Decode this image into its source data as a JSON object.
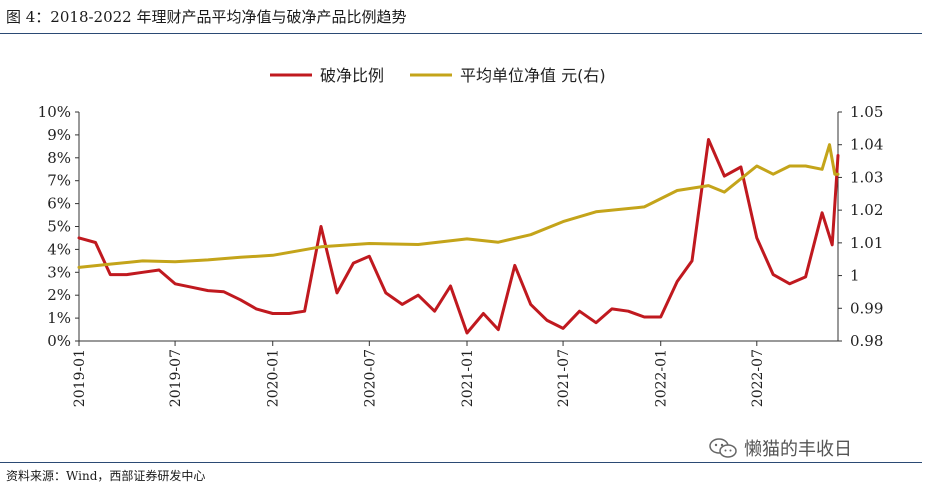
{
  "header": {
    "title": "图 4：2018-2022 年理财产品平均净值与破净产品比例趋势"
  },
  "footer": {
    "source": "资料来源：Wind，西部证券研发中心"
  },
  "watermark": {
    "text": "懒猫的丰收日",
    "icon": "wechat-icon"
  },
  "colors": {
    "series1": "#c0191f",
    "series2": "#c4a41a",
    "rule": "#2b4a74"
  },
  "chart_data": {
    "type": "line",
    "legend_position": "top-center",
    "grid": false,
    "x_range": [
      "2019-01",
      "2022-12"
    ],
    "x_ticks": [
      "2019-01",
      "2019-07",
      "2020-01",
      "2020-07",
      "2021-01",
      "2021-07",
      "2022-01",
      "2022-07"
    ],
    "y_left": {
      "ticks": [
        "0%",
        "1%",
        "2%",
        "3%",
        "4%",
        "5%",
        "6%",
        "7%",
        "8%",
        "9%",
        "10%"
      ],
      "range": [
        0,
        10
      ]
    },
    "y_right": {
      "ticks": [
        "0.98",
        "0.99",
        "1",
        "1.01",
        "1.02",
        "1.03",
        "1.04",
        "1.05"
      ],
      "range": [
        0.98,
        1.05
      ]
    },
    "series": [
      {
        "name": "破净比例",
        "axis": "left",
        "points": [
          [
            "2019-01",
            4.5
          ],
          [
            "2019-02",
            4.3
          ],
          [
            "2019-03",
            2.9
          ],
          [
            "2019-04",
            2.9
          ],
          [
            "2019-05",
            3.0
          ],
          [
            "2019-06",
            3.1
          ],
          [
            "2019-07",
            2.5
          ],
          [
            "2019-08",
            2.35
          ],
          [
            "2019-09",
            2.2
          ],
          [
            "2019-10",
            2.15
          ],
          [
            "2019-11",
            1.8
          ],
          [
            "2019-12",
            1.4
          ],
          [
            "2020-01",
            1.2
          ],
          [
            "2020-02",
            1.2
          ],
          [
            "2020-03",
            1.3
          ],
          [
            "2020-04",
            5.0
          ],
          [
            "2020-05",
            2.1
          ],
          [
            "2020-06",
            3.4
          ],
          [
            "2020-07",
            3.7
          ],
          [
            "2020-08",
            2.1
          ],
          [
            "2020-09",
            1.6
          ],
          [
            "2020-10",
            2.0
          ],
          [
            "2020-11",
            1.3
          ],
          [
            "2020-12",
            2.4
          ],
          [
            "2021-01",
            0.35
          ],
          [
            "2021-02",
            1.2
          ],
          [
            "2021-03",
            0.5
          ],
          [
            "2021-04",
            3.3
          ],
          [
            "2021-05",
            1.6
          ],
          [
            "2021-06",
            0.9
          ],
          [
            "2021-07",
            0.55
          ],
          [
            "2021-08",
            1.3
          ],
          [
            "2021-09",
            0.8
          ],
          [
            "2021-10",
            1.4
          ],
          [
            "2021-11",
            1.3
          ],
          [
            "2021-12",
            1.05
          ],
          [
            "2022-01",
            1.05
          ],
          [
            "2022-02",
            2.6
          ],
          [
            "2022-03",
            3.5
          ],
          [
            "2022-04",
            8.8
          ],
          [
            "2022-05",
            7.2
          ],
          [
            "2022-06",
            7.6
          ],
          [
            "2022-07",
            4.5
          ],
          [
            "2022-08",
            2.9
          ],
          [
            "2022-09",
            2.5
          ],
          [
            "2022-10",
            2.8
          ],
          [
            "2022-11",
            5.6
          ],
          [
            "2022-11-20",
            4.2
          ],
          [
            "2022-12",
            8.1
          ]
        ]
      },
      {
        "name": "平均单位净值  元(右)",
        "axis": "right",
        "points": [
          [
            "2019-01",
            1.0025
          ],
          [
            "2019-03",
            1.0035
          ],
          [
            "2019-05",
            1.0045
          ],
          [
            "2019-07",
            1.0042
          ],
          [
            "2019-09",
            1.0048
          ],
          [
            "2019-11",
            1.0056
          ],
          [
            "2020-01",
            1.0062
          ],
          [
            "2020-04",
            1.0088
          ],
          [
            "2020-07",
            1.0098
          ],
          [
            "2020-10",
            1.0095
          ],
          [
            "2021-01",
            1.0112
          ],
          [
            "2021-03",
            1.0102
          ],
          [
            "2021-05",
            1.0125
          ],
          [
            "2021-07",
            1.0165
          ],
          [
            "2021-09",
            1.0195
          ],
          [
            "2021-12",
            1.021
          ],
          [
            "2022-02",
            1.026
          ],
          [
            "2022-04",
            1.0275
          ],
          [
            "2022-05",
            1.0255
          ],
          [
            "2022-07",
            1.0335
          ],
          [
            "2022-08",
            1.031
          ],
          [
            "2022-09",
            1.0335
          ],
          [
            "2022-10",
            1.0335
          ],
          [
            "2022-11",
            1.0325
          ],
          [
            "2022-11-15",
            1.04
          ],
          [
            "2022-11-25",
            1.031
          ],
          [
            "2022-12",
            1.031
          ]
        ]
      }
    ]
  }
}
